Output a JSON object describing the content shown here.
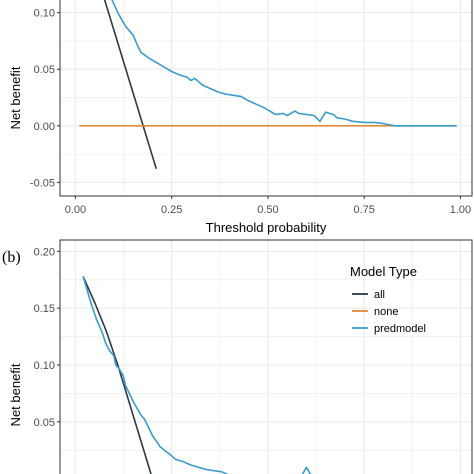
{
  "colors": {
    "all": "#2b3a46",
    "none": "#e08a3c",
    "predmodel": "#3a9ccc",
    "grid": "#ebebeb",
    "panel_border": "#333333"
  },
  "chart_data": [
    {
      "type": "line",
      "panel_label": "",
      "xlabel": "Threshold probability",
      "ylabel": "Net benefit",
      "xlim": [
        -0.04,
        1.03
      ],
      "ylim": [
        -0.062,
        0.12
      ],
      "x_ticks": [
        0.0,
        0.25,
        0.5,
        0.75,
        1.0
      ],
      "x_tick_labels": [
        "0.00",
        "0.25",
        "0.50",
        "0.75",
        "1.00"
      ],
      "y_ticks": [
        -0.05,
        0.0,
        0.05,
        0.1
      ],
      "y_tick_labels": [
        "-0.05",
        "0.00",
        "0.05",
        "0.10"
      ],
      "grid": true,
      "legend": null,
      "series": [
        {
          "key": "all",
          "points": [
            [
              0.05,
              0.14
            ],
            [
              0.21,
              -0.038
            ]
          ]
        },
        {
          "key": "none",
          "points": [
            [
              0.01,
              0.0
            ],
            [
              0.99,
              0.0
            ]
          ]
        },
        {
          "key": "predmodel",
          "points": [
            [
              0.05,
              0.15
            ],
            [
              0.09,
              0.115
            ],
            [
              0.11,
              0.1
            ],
            [
              0.13,
              0.088
            ],
            [
              0.15,
              0.08
            ],
            [
              0.16,
              0.072
            ],
            [
              0.17,
              0.065
            ],
            [
              0.19,
              0.06
            ],
            [
              0.21,
              0.056
            ],
            [
              0.23,
              0.052
            ],
            [
              0.25,
              0.048
            ],
            [
              0.27,
              0.045
            ],
            [
              0.29,
              0.043
            ],
            [
              0.3,
              0.04
            ],
            [
              0.31,
              0.042
            ],
            [
              0.33,
              0.036
            ],
            [
              0.35,
              0.033
            ],
            [
              0.37,
              0.03
            ],
            [
              0.39,
              0.028
            ],
            [
              0.41,
              0.027
            ],
            [
              0.43,
              0.026
            ],
            [
              0.45,
              0.022
            ],
            [
              0.47,
              0.019
            ],
            [
              0.49,
              0.016
            ],
            [
              0.5,
              0.014
            ],
            [
              0.52,
              0.01
            ],
            [
              0.54,
              0.011
            ],
            [
              0.55,
              0.009
            ],
            [
              0.57,
              0.013
            ],
            [
              0.58,
              0.011
            ],
            [
              0.6,
              0.01
            ],
            [
              0.62,
              0.009
            ],
            [
              0.635,
              0.004
            ],
            [
              0.65,
              0.012
            ],
            [
              0.67,
              0.01
            ],
            [
              0.68,
              0.007
            ],
            [
              0.7,
              0.006
            ],
            [
              0.72,
              0.004
            ],
            [
              0.75,
              0.003
            ],
            [
              0.78,
              0.003
            ],
            [
              0.8,
              0.002
            ],
            [
              0.83,
              0.0
            ],
            [
              0.9,
              0.0
            ],
            [
              0.99,
              0.0
            ]
          ]
        }
      ]
    },
    {
      "type": "line",
      "panel_label": "(b)",
      "xlabel": "",
      "ylabel": "Net benefit",
      "xlim": [
        -0.04,
        1.03
      ],
      "ylim": [
        -0.01,
        0.21
      ],
      "x_ticks": [
        0.0,
        0.25,
        0.5,
        0.75,
        1.0
      ],
      "x_tick_labels": [],
      "y_ticks": [
        0.0,
        0.05,
        0.1,
        0.15,
        0.2
      ],
      "y_tick_labels": [
        "0.00",
        "0.05",
        "0.10",
        "0.15",
        "0.20"
      ],
      "grid": true,
      "legend": {
        "title": "Model Type",
        "position": "top-right",
        "entries": [
          {
            "key": "all",
            "label": "all"
          },
          {
            "key": "none",
            "label": "none"
          },
          {
            "key": "predmodel",
            "label": "predmodel"
          }
        ]
      },
      "series": [
        {
          "key": "all",
          "points": [
            [
              0.02,
              0.178
            ],
            [
              0.05,
              0.155
            ],
            [
              0.08,
              0.13
            ],
            [
              0.11,
              0.1
            ],
            [
              0.2,
              0.0
            ]
          ]
        },
        {
          "key": "predmodel",
          "points": [
            [
              0.02,
              0.178
            ],
            [
              0.04,
              0.155
            ],
            [
              0.055,
              0.14
            ],
            [
              0.07,
              0.128
            ],
            [
              0.08,
              0.118
            ],
            [
              0.09,
              0.112
            ],
            [
              0.1,
              0.108
            ],
            [
              0.105,
              0.1
            ],
            [
              0.115,
              0.096
            ],
            [
              0.125,
              0.09
            ],
            [
              0.13,
              0.082
            ],
            [
              0.14,
              0.075
            ],
            [
              0.15,
              0.068
            ],
            [
              0.16,
              0.062
            ],
            [
              0.17,
              0.056
            ],
            [
              0.18,
              0.052
            ],
            [
              0.19,
              0.045
            ],
            [
              0.2,
              0.038
            ],
            [
              0.21,
              0.033
            ],
            [
              0.22,
              0.028
            ],
            [
              0.235,
              0.024
            ],
            [
              0.25,
              0.02
            ],
            [
              0.26,
              0.017
            ],
            [
              0.28,
              0.015
            ],
            [
              0.3,
              0.012
            ],
            [
              0.32,
              0.01
            ],
            [
              0.34,
              0.008
            ],
            [
              0.36,
              0.007
            ],
            [
              0.38,
              0.006
            ],
            [
              0.4,
              0.003
            ],
            [
              0.43,
              0.003
            ],
            [
              0.46,
              0.001
            ],
            [
              0.5,
              0.0
            ],
            [
              0.55,
              0.0
            ],
            [
              0.58,
              0.0
            ],
            [
              0.59,
              0.004
            ],
            [
              0.6,
              0.01
            ],
            [
              0.61,
              0.004
            ],
            [
              0.63,
              0.002
            ],
            [
              0.65,
              0.0
            ]
          ]
        }
      ]
    }
  ]
}
